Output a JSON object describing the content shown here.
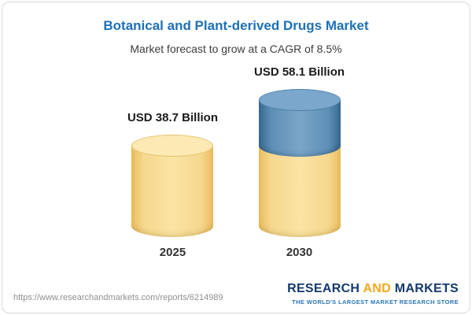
{
  "header": {
    "title": "Botanical and Plant-derived Drugs Market",
    "subtitle": "Market forecast to grow at a CAGR of 8.5%"
  },
  "chart_data": {
    "type": "bar",
    "variant": "3d-cylinder",
    "title": "Botanical and Plant-derived Drugs Market",
    "subtitle": "Market forecast to grow at a CAGR of 8.5%",
    "cagr_percent": 8.5,
    "categories": [
      "2025",
      "2030"
    ],
    "values": [
      38.7,
      58.1
    ],
    "unit": "USD Billion",
    "value_labels": [
      "USD 38.7 Billion",
      "USD 58.1 Billion"
    ],
    "legend": "none",
    "notes": "2030 bar shows growth segment in blue stacked on yellow base equal to 2025 value",
    "colors": {
      "base_segment": "#f3d27b",
      "growth_segment": "#5f93ba",
      "title_text": "#1d70b7"
    }
  },
  "footer": {
    "url": "https://www.researchandmarkets.com/reports/6214989",
    "logo": {
      "research": "RESEARCH",
      "and": "AND",
      "markets": "MARKETS",
      "tagline": "THE WORLD'S LARGEST MARKET RESEARCH STORE"
    }
  }
}
